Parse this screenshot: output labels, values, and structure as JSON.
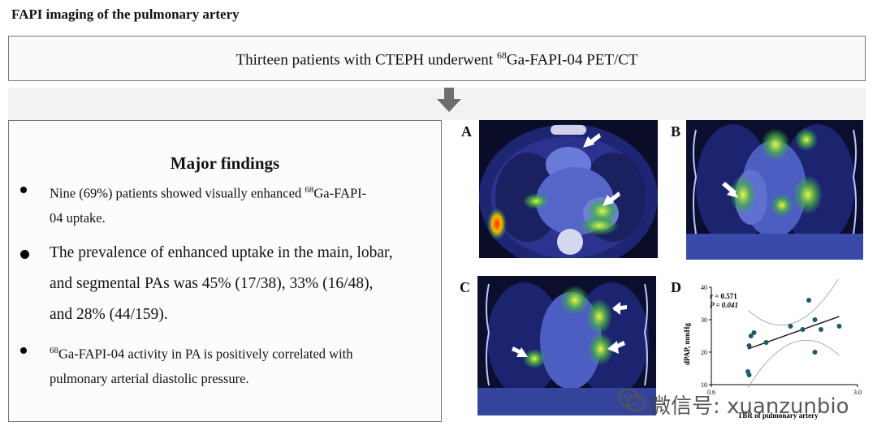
{
  "title": "FAPI imaging of the pulmonary artery",
  "top_box": {
    "pre": "Thirteen patients with CTEPH underwent ",
    "sup": "68",
    "post": "Ga-FAPI-04 PET/CT"
  },
  "findings": {
    "heading": "Major findings",
    "b1": {
      "pre": "Nine (69%) patients showed visually enhanced ",
      "sup": "68",
      "l1_post": "Ga-FAPI-",
      "l2": "04 uptake."
    },
    "b2": {
      "l1": "The prevalence of enhanced uptake in the main, lobar,",
      "l2": "and segmental PAs was 45% (17/38), 33% (16/48),",
      "l3": "and 28% (44/159)."
    },
    "b3": {
      "sup": "68",
      "l1_post": "Ga-FAPI-04 activity in PA is positively correlated with",
      "l2": "pulmonary arterial diastolic pressure."
    }
  },
  "panels": {
    "a": "A",
    "b": "B",
    "c": "C",
    "d": "D"
  },
  "watermark": "微信号: xuanzunbio",
  "chart_data": {
    "type": "scatter",
    "title": "",
    "xlabel": "TBR of pulmonary artery",
    "ylabel": "dPAP, mmHg",
    "xlim": [
      0.6,
      3.0
    ],
    "ylim": [
      10,
      40
    ],
    "x_ticks": [
      "0.6",
      "3.0"
    ],
    "y_ticks": [
      "10",
      "20",
      "30",
      "40"
    ],
    "annotations": [
      "r = 0.571",
      "P = 0.041"
    ],
    "points": [
      {
        "x": 1.2,
        "y": 14
      },
      {
        "x": 1.22,
        "y": 13
      },
      {
        "x": 1.22,
        "y": 22
      },
      {
        "x": 1.25,
        "y": 25
      },
      {
        "x": 1.3,
        "y": 26
      },
      {
        "x": 1.5,
        "y": 23
      },
      {
        "x": 1.9,
        "y": 28
      },
      {
        "x": 2.1,
        "y": 27
      },
      {
        "x": 2.2,
        "y": 36
      },
      {
        "x": 2.3,
        "y": 30
      },
      {
        "x": 2.3,
        "y": 20
      },
      {
        "x": 2.4,
        "y": 27
      },
      {
        "x": 2.7,
        "y": 28
      }
    ],
    "fit_line": {
      "x": [
        1.2,
        2.7
      ],
      "y": [
        21,
        31
      ]
    },
    "grid": false,
    "marker_color": "#1f5a6b"
  }
}
